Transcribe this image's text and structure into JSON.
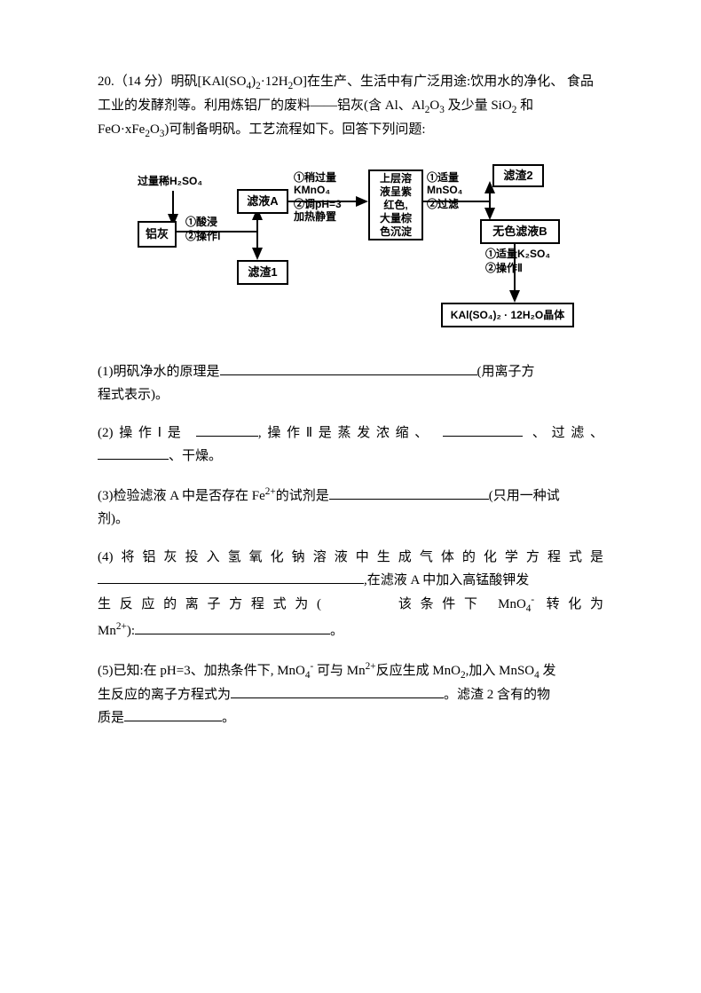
{
  "intro": {
    "line1a": "20.（14 分）明矾[KAl(SO",
    "sub1": "4",
    "line1b": ")",
    "sub2": "2",
    "line1c": "·12H",
    "sub3": "2",
    "line1d": "O]在生产、生活中有广泛用途:饮用水的净化、",
    "line2a": "食品工业的发酵剂等。利用炼铝厂的废料——铝灰(含 Al、Al",
    "sub4": "2",
    "line2b": "O",
    "sub5": "3",
    "line2c": " 及少量 SiO",
    "sub6": "2",
    "line2d": " 和",
    "line3a": "FeO·xFe",
    "sub7": "2",
    "line3b": "O",
    "sub8": "3",
    "line3c": ")可制备明矾。工艺流程如下。回答下列问题:"
  },
  "diagram": {
    "h2so4_top": "过量稀H₂SO₄",
    "alash": "铝灰",
    "step1a": "①酸浸",
    "step1b": "②操作Ⅰ",
    "solA": "滤液A",
    "residue1": "滤渣1",
    "step2a": "①稍过量",
    "step2b": "KMnO₄",
    "step2c": "②调pH=3",
    "step2d": "加热静置",
    "midbox1": "上层溶",
    "midbox2": "液呈紫",
    "midbox3": "红色,",
    "midbox4": "大量棕",
    "midbox5": "色沉淀",
    "step3a": "①适量",
    "step3b": "MnSO₄",
    "step3c": "②过滤",
    "residue2": "滤渣2",
    "solB": "无色滤液B",
    "step4a": "①适量K₂SO₄",
    "step4b": "②操作Ⅱ",
    "product": "KAl(SO₄)₂ · 12H₂O晶体"
  },
  "q1": {
    "text_before": "(1)明矾净水的原理是",
    "text_after": "(用离子方",
    "line2": "程式表示)。"
  },
  "q2": {
    "text1": "(2)操作Ⅰ是",
    "text2": ",操作Ⅱ是蒸发浓缩、",
    "text3": "、过滤、",
    "text4": "、干燥。"
  },
  "q3": {
    "text1": "(3)检验滤液 A 中是否存在 Fe",
    "sup1": "2+",
    "text2": "的试剂是",
    "text3": "(只用一种试",
    "text4": "剂)。"
  },
  "q4": {
    "line1": "(4)将铝灰投入氢氧化钠溶液中生成气体的化学方程式是",
    "line2a": ",在滤液 A 中加入高锰酸钾发",
    "line3a": "生反应的离子方程式为(",
    "line3b": "该条件下 MnO",
    "sub1": "4",
    "sup1": "-",
    "line3c": "转化为",
    "line4a": "Mn",
    "sup2": "2+",
    "line4b": "):",
    "line4c": "。"
  },
  "q5": {
    "text1": "(5)已知:在 pH=3、加热条件下, MnO",
    "sub1": "4",
    "sup1": "-",
    "text2": " 可与 Mn",
    "sup2": "2+",
    "text3": "反应生成 MnO",
    "sub2": "2",
    "text4": ",加入 MnSO",
    "sub3": "4",
    "text5": " 发",
    "line2a": "生反应的离子方程式为",
    "line2b": "。滤渣 2 含有的物",
    "line3a": "质是",
    "line3b": "。"
  },
  "blanks": {
    "q1": 290,
    "q2a": 70,
    "q2b": 90,
    "q2c": 80,
    "q3": 180,
    "q4a": 300,
    "q4b": 220,
    "q5a": 240,
    "q5b": 110
  }
}
